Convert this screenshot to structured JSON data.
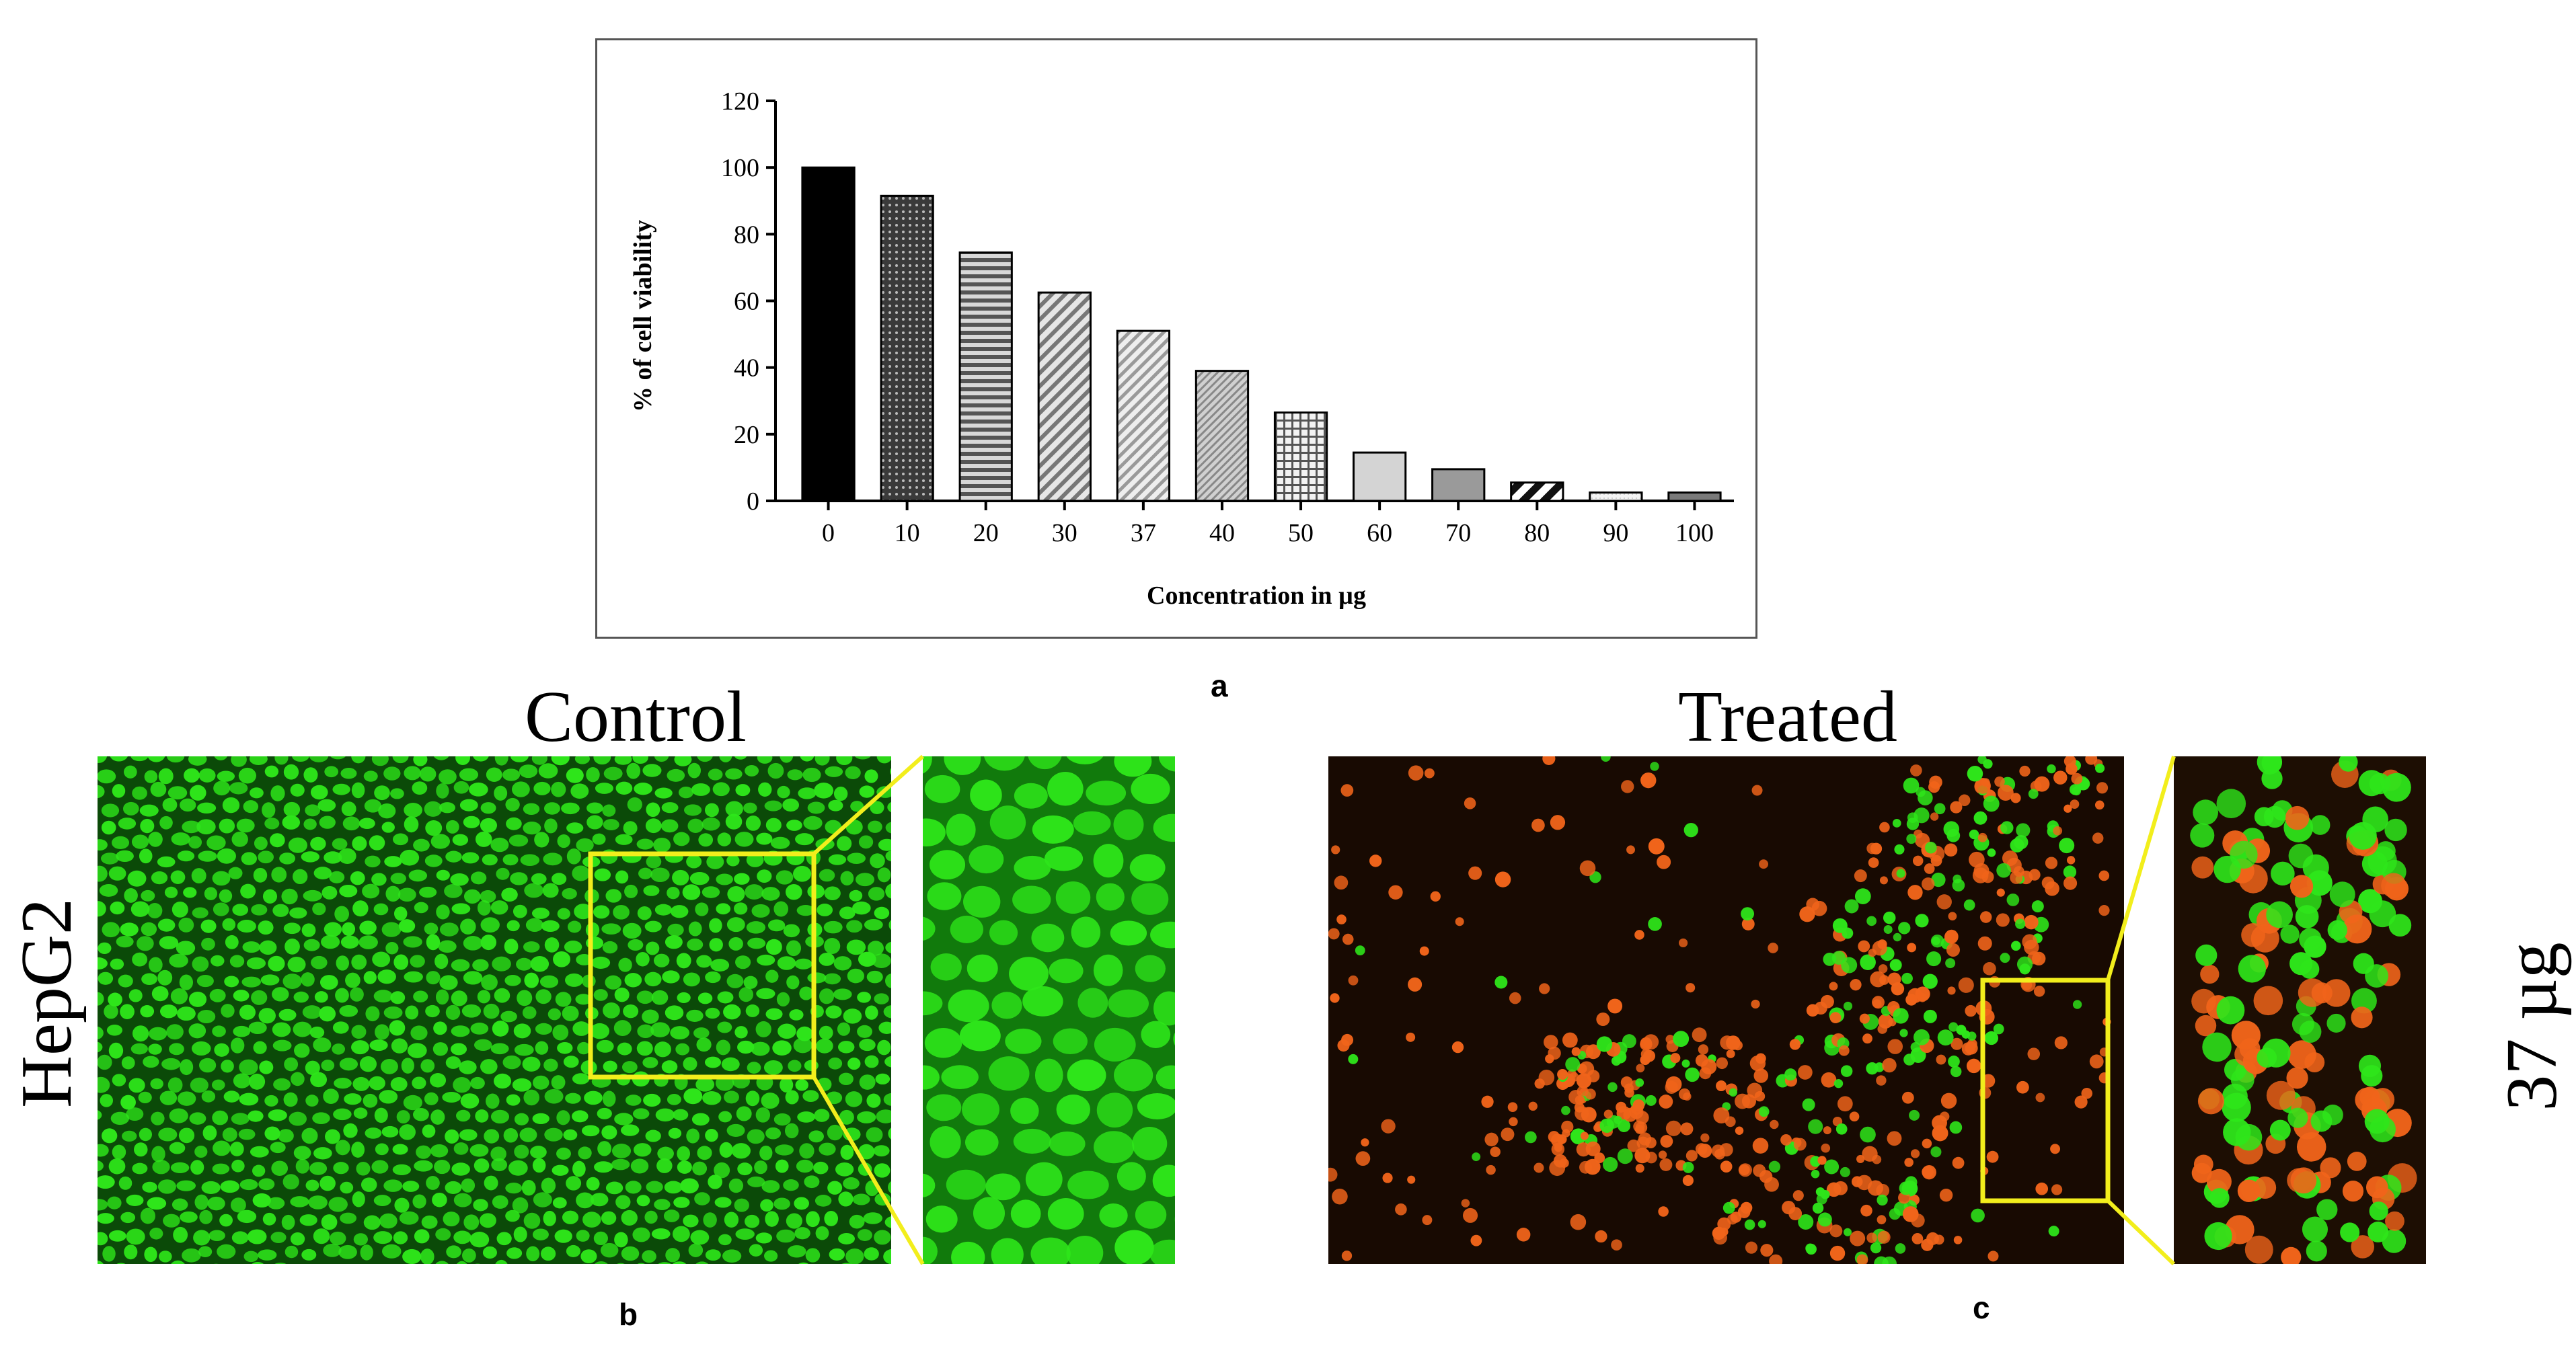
{
  "chart_data": {
    "type": "bar",
    "categories": [
      "0",
      "10",
      "20",
      "30",
      "37",
      "40",
      "50",
      "60",
      "70",
      "80",
      "90",
      "100"
    ],
    "values": [
      100,
      91.5,
      74.5,
      62.5,
      51,
      39,
      26.5,
      14.5,
      9.5,
      5.5,
      2.5,
      2.5
    ],
    "xlabel": "Concentration in µg",
    "ylabel": "% of  cell viability",
    "ylim": [
      0,
      120
    ],
    "yticks": [
      "0",
      "20",
      "40",
      "60",
      "80",
      "100",
      "120"
    ],
    "grid": false,
    "fills": [
      "solid-black",
      "dots-dark",
      "horizontal-stripes",
      "diagonal-stripes",
      "diagonal-light",
      "diagonal-fine",
      "grid",
      "solid-light-gray",
      "solid-gray",
      "diagonal-black",
      "outline-light",
      "solid-dark-gray"
    ]
  },
  "labels": {
    "panel_a": "a",
    "panel_b": "b",
    "panel_c": "c",
    "control": "Control",
    "treated": "Treated",
    "cell_line": "HepG2",
    "dose": "37 µg"
  },
  "colors": {
    "highlight_box": "#f2ee1c",
    "live_stain": "#2ee61a",
    "dead_stain": "#f0641a"
  }
}
